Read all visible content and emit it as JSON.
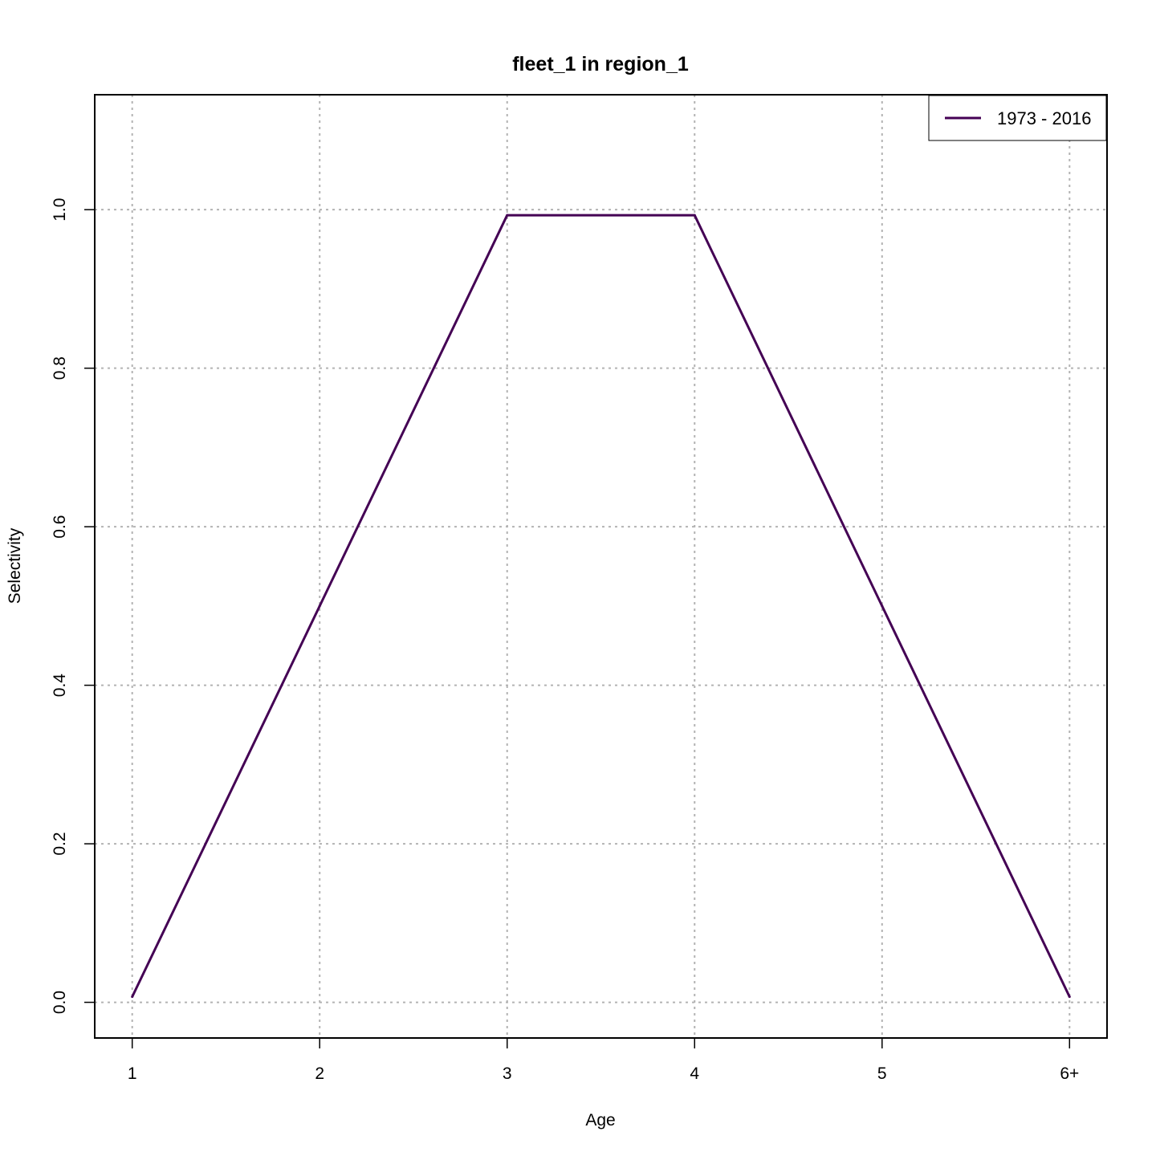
{
  "chart_data": {
    "type": "line",
    "title": "fleet_1 in region_1",
    "xlabel": "Age",
    "ylabel": "Selectivity",
    "categories": [
      "1",
      "2",
      "3",
      "4",
      "5",
      "6+"
    ],
    "x": [
      1,
      2,
      3,
      4,
      5,
      6
    ],
    "xlim": [
      0.8,
      6.2
    ],
    "ylim": [
      -0.045,
      1.145
    ],
    "yticks": [
      0.0,
      0.2,
      0.4,
      0.6,
      0.8,
      1.0
    ],
    "ytick_labels": [
      "0.0",
      "0.2",
      "0.4",
      "0.6",
      "0.8",
      "1.0"
    ],
    "grid": true,
    "legend_position": "top-right",
    "series": [
      {
        "name": "1973 - 2016",
        "color": "#440154",
        "values": [
          0.007,
          0.5,
          0.993,
          0.993,
          0.5,
          0.007
        ]
      }
    ]
  }
}
